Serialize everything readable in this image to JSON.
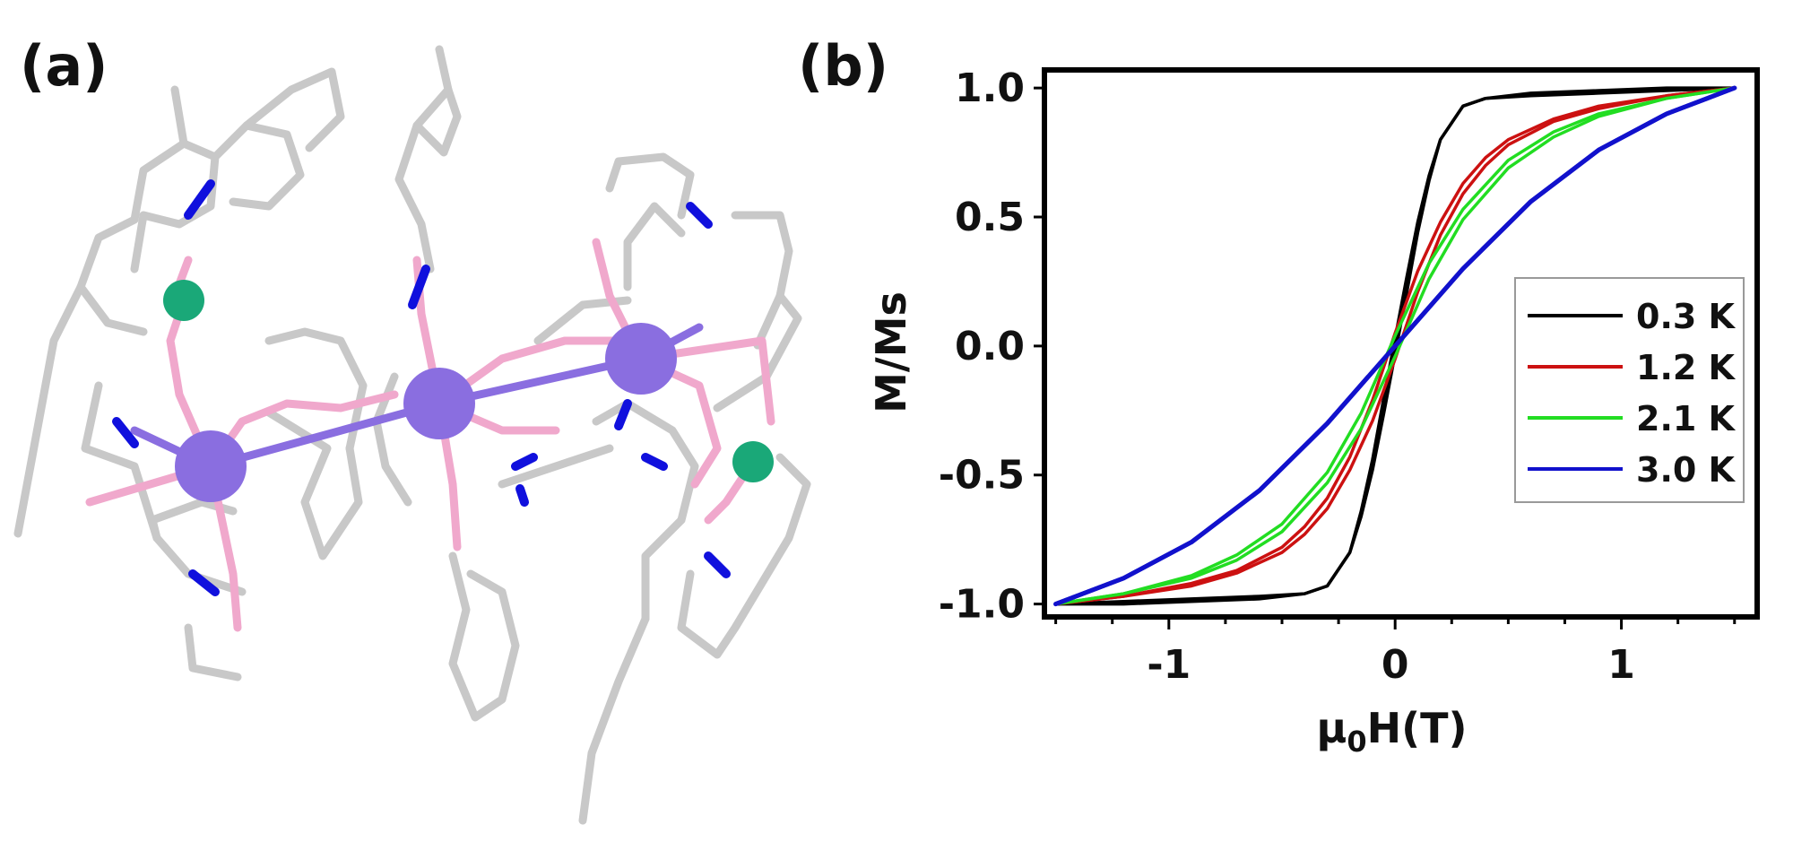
{
  "panels": {
    "a_label": "(a)",
    "b_label": "(b)"
  },
  "colors": {
    "bond": "#c8c8c8",
    "nitrogen": "#1010dd",
    "oxygen": "#f0a8cc",
    "dy_atom": "#8a6ee0",
    "green_atom": "#1aa878",
    "molecule_violet_bond": "#8a6ee0"
  },
  "molecule": {
    "description_icons": [
      "large-violet-metal-atom",
      "small-green-atom",
      "blue-nitrogen-bond",
      "pink-oxygen-bond",
      "grey-carbon-bond"
    ]
  },
  "chart_data": {
    "type": "line",
    "title": "",
    "xlabel": "μ0H(T)",
    "ylabel": "M/Ms",
    "xlim": [
      -1.5,
      1.5
    ],
    "ylim": [
      -1.0,
      1.0
    ],
    "xticks": [
      -1,
      0,
      1
    ],
    "xtick_labels": [
      "-1",
      "0",
      "1"
    ],
    "yticks": [
      -1.0,
      -0.5,
      0.0,
      0.5,
      1.0
    ],
    "ytick_labels": [
      "-1.0",
      "-0.5",
      "0.0",
      "0.5",
      "1.0"
    ],
    "grid": false,
    "legend_position": "center-right",
    "series": [
      {
        "name": "0.3 K",
        "color": "#000000",
        "x": [
          -1.5,
          -1.2,
          -0.9,
          -0.6,
          -0.4,
          -0.3,
          -0.2,
          -0.15,
          -0.1,
          -0.05,
          0.0,
          0.05,
          0.1,
          0.15,
          0.2,
          0.3,
          0.4,
          0.6,
          0.9,
          1.2,
          1.5
        ],
        "y_up": [
          -1.0,
          -0.99,
          -0.98,
          -0.97,
          -0.96,
          -0.93,
          -0.8,
          -0.66,
          -0.48,
          -0.26,
          -0.03,
          0.2,
          0.44,
          0.64,
          0.8,
          0.93,
          0.96,
          0.98,
          0.99,
          1.0,
          1.0
        ],
        "y_down": [
          -1.0,
          -1.0,
          -0.99,
          -0.98,
          -0.96,
          -0.93,
          -0.8,
          -0.64,
          -0.44,
          -0.2,
          0.03,
          0.26,
          0.48,
          0.66,
          0.8,
          0.93,
          0.96,
          0.97,
          0.98,
          0.99,
          1.0
        ]
      },
      {
        "name": "1.2 K",
        "color": "#cc1111",
        "x": [
          -1.5,
          -1.2,
          -0.9,
          -0.7,
          -0.5,
          -0.4,
          -0.3,
          -0.2,
          -0.1,
          0.0,
          0.1,
          0.2,
          0.3,
          0.4,
          0.5,
          0.7,
          0.9,
          1.2,
          1.5
        ],
        "y_up": [
          -1.0,
          -0.97,
          -0.93,
          -0.88,
          -0.8,
          -0.73,
          -0.63,
          -0.48,
          -0.29,
          -0.05,
          0.21,
          0.43,
          0.59,
          0.7,
          0.78,
          0.87,
          0.92,
          0.97,
          1.0
        ],
        "y_down": [
          -1.0,
          -0.97,
          -0.92,
          -0.87,
          -0.78,
          -0.7,
          -0.59,
          -0.43,
          -0.21,
          0.05,
          0.29,
          0.48,
          0.63,
          0.73,
          0.8,
          0.88,
          0.93,
          0.97,
          1.0
        ]
      },
      {
        "name": "2.1 K",
        "color": "#22dd22",
        "x": [
          -1.5,
          -1.2,
          -0.9,
          -0.7,
          -0.5,
          -0.3,
          -0.15,
          0.0,
          0.15,
          0.3,
          0.5,
          0.7,
          0.9,
          1.2,
          1.5
        ],
        "y_up": [
          -1.0,
          -0.96,
          -0.9,
          -0.83,
          -0.72,
          -0.53,
          -0.32,
          -0.04,
          0.26,
          0.49,
          0.69,
          0.81,
          0.89,
          0.96,
          1.0
        ],
        "y_down": [
          -1.0,
          -0.96,
          -0.89,
          -0.81,
          -0.69,
          -0.49,
          -0.26,
          0.04,
          0.32,
          0.53,
          0.72,
          0.83,
          0.9,
          0.96,
          1.0
        ]
      },
      {
        "name": "3.0 K",
        "color": "#1111cc",
        "x": [
          -1.5,
          -1.2,
          -0.9,
          -0.6,
          -0.3,
          0.0,
          0.3,
          0.6,
          0.9,
          1.2,
          1.5
        ],
        "y_up": [
          -1.0,
          -0.9,
          -0.76,
          -0.56,
          -0.3,
          0.0,
          0.3,
          0.56,
          0.76,
          0.9,
          1.0
        ],
        "y_down": [
          -1.0,
          -0.9,
          -0.76,
          -0.56,
          -0.3,
          0.0,
          0.3,
          0.56,
          0.76,
          0.9,
          1.0
        ]
      }
    ]
  }
}
